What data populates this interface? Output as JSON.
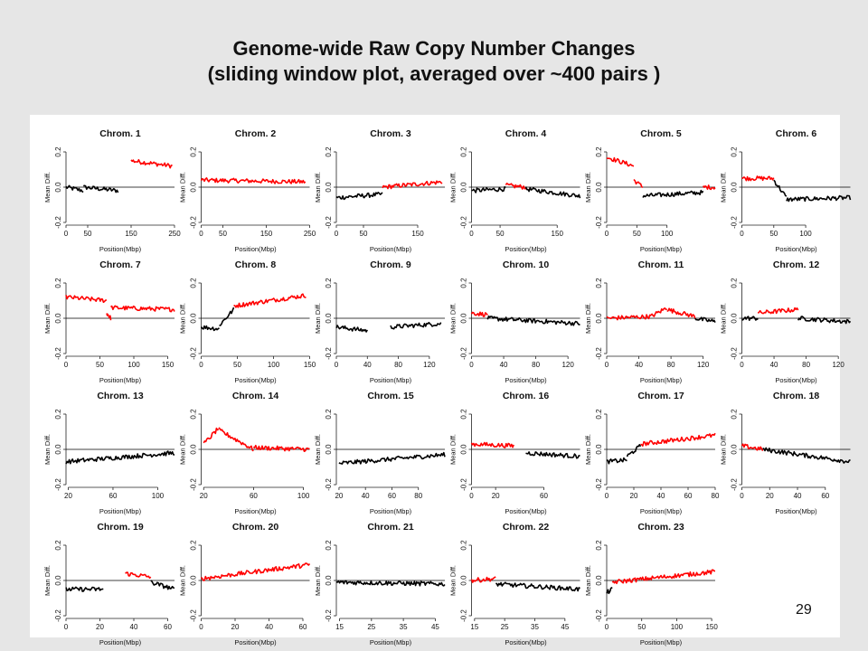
{
  "slide": {
    "title_line1": "Genome-wide Raw Copy Number Changes",
    "title_line2": "(sliding window plot, averaged over ~400 pairs )",
    "page_number": "29"
  },
  "colors": {
    "gain": "#ff0000",
    "loss": "#000000",
    "background": "#e6e6e6",
    "panel": "#ffffff"
  },
  "chart_data": [
    {
      "type": "line",
      "title": "Chrom. 1",
      "xlabel": "Position(Mbp)",
      "ylabel": "Mean Diff.",
      "xlim": [
        0,
        250
      ],
      "ylim": [
        -0.2,
        0.2
      ],
      "xticks": [
        0,
        50,
        150,
        250
      ],
      "yticks": [
        -0.2,
        0.0,
        0.2
      ],
      "segments": [
        {
          "x": [
            0,
            40
          ],
          "y": [
            0.0,
            -0.02
          ],
          "color": "black"
        },
        {
          "x": [
            40,
            120
          ],
          "y": [
            0.0,
            -0.02
          ],
          "color": "black"
        },
        {
          "x": [
            150,
            245
          ],
          "y": [
            0.15,
            0.12
          ],
          "color": "red"
        }
      ]
    },
    {
      "type": "line",
      "title": "Chrom. 2",
      "xlabel": "Position(Mbp)",
      "ylabel": "Mean Diff.",
      "xlim": [
        0,
        250
      ],
      "ylim": [
        -0.2,
        0.2
      ],
      "xticks": [
        0,
        50,
        150,
        250
      ],
      "yticks": [
        -0.2,
        0.0,
        0.2
      ],
      "segments": [
        {
          "x": [
            0,
            240
          ],
          "y": [
            0.04,
            0.03
          ],
          "color": "red"
        }
      ]
    },
    {
      "type": "line",
      "title": "Chrom. 3",
      "xlabel": "Position(Mbp)",
      "ylabel": "Mean Diff.",
      "xlim": [
        0,
        200
      ],
      "ylim": [
        -0.2,
        0.2
      ],
      "xticks": [
        0,
        50,
        150
      ],
      "yticks": [
        -0.2,
        0.0,
        0.2
      ],
      "segments": [
        {
          "x": [
            0,
            85
          ],
          "y": [
            -0.06,
            -0.04
          ],
          "color": "black"
        },
        {
          "x": [
            85,
            195
          ],
          "y": [
            0.0,
            0.03
          ],
          "color": "red"
        }
      ]
    },
    {
      "type": "line",
      "title": "Chrom. 4",
      "xlabel": "Position(Mbp)",
      "ylabel": "Mean Diff.",
      "xlim": [
        0,
        190
      ],
      "ylim": [
        -0.2,
        0.2
      ],
      "xticks": [
        0,
        50,
        150
      ],
      "yticks": [
        -0.2,
        0.0,
        0.2
      ],
      "segments": [
        {
          "x": [
            0,
            60
          ],
          "y": [
            -0.02,
            -0.01
          ],
          "color": "black"
        },
        {
          "x": [
            60,
            95
          ],
          "y": [
            0.01,
            0.0
          ],
          "color": "red"
        },
        {
          "x": [
            95,
            190
          ],
          "y": [
            -0.01,
            -0.05
          ],
          "color": "black"
        }
      ]
    },
    {
      "type": "line",
      "title": "Chrom. 5",
      "xlabel": "Position(Mbp)",
      "ylabel": "Mean Diff.",
      "xlim": [
        0,
        180
      ],
      "ylim": [
        -0.2,
        0.2
      ],
      "xticks": [
        0,
        50,
        100
      ],
      "yticks": [
        -0.2,
        0.0,
        0.2
      ],
      "segments": [
        {
          "x": [
            0,
            45
          ],
          "y": [
            0.17,
            0.12
          ],
          "color": "red"
        },
        {
          "x": [
            45,
            60
          ],
          "y": [
            0.04,
            0.0
          ],
          "color": "red"
        },
        {
          "x": [
            60,
            160
          ],
          "y": [
            -0.05,
            -0.03
          ],
          "color": "black"
        },
        {
          "x": [
            160,
            180
          ],
          "y": [
            0.0,
            0.0
          ],
          "color": "red"
        }
      ]
    },
    {
      "type": "line",
      "title": "Chrom. 6",
      "xlabel": "Position(Mbp)",
      "ylabel": "Mean Diff.",
      "xlim": [
        0,
        170
      ],
      "ylim": [
        -0.2,
        0.2
      ],
      "xticks": [
        0,
        50,
        100
      ],
      "yticks": [
        -0.2,
        0.0,
        0.2
      ],
      "segments": [
        {
          "x": [
            0,
            50
          ],
          "y": [
            0.05,
            0.05
          ],
          "color": "red"
        },
        {
          "x": [
            50,
            70
          ],
          "y": [
            0.04,
            -0.06
          ],
          "color": "black"
        },
        {
          "x": [
            70,
            170
          ],
          "y": [
            -0.07,
            -0.06
          ],
          "color": "black"
        }
      ]
    },
    {
      "type": "line",
      "title": "Chrom. 7",
      "xlabel": "Position(Mbp)",
      "ylabel": "Mean Diff.",
      "xlim": [
        0,
        160
      ],
      "ylim": [
        -0.2,
        0.2
      ],
      "xticks": [
        0,
        50,
        100,
        150
      ],
      "yticks": [
        -0.2,
        0.0,
        0.2
      ],
      "segments": [
        {
          "x": [
            0,
            60
          ],
          "y": [
            0.12,
            0.1
          ],
          "color": "red"
        },
        {
          "x": [
            60,
            66
          ],
          "y": [
            0.03,
            0.0
          ],
          "color": "red"
        },
        {
          "x": [
            66,
            160
          ],
          "y": [
            0.06,
            0.05
          ],
          "color": "red"
        }
      ]
    },
    {
      "type": "line",
      "title": "Chrom. 8",
      "xlabel": "Position(Mbp)",
      "ylabel": "Mean Diff.",
      "xlim": [
        0,
        150
      ],
      "ylim": [
        -0.2,
        0.2
      ],
      "xticks": [
        0,
        50,
        100,
        150
      ],
      "yticks": [
        -0.2,
        0.0,
        0.2
      ],
      "segments": [
        {
          "x": [
            0,
            25
          ],
          "y": [
            -0.05,
            -0.06
          ],
          "color": "black"
        },
        {
          "x": [
            25,
            45
          ],
          "y": [
            -0.04,
            0.05
          ],
          "color": "black"
        },
        {
          "x": [
            45,
            145
          ],
          "y": [
            0.07,
            0.13
          ],
          "color": "red"
        }
      ]
    },
    {
      "type": "line",
      "title": "Chrom. 9",
      "xlabel": "Position(Mbp)",
      "ylabel": "Mean Diff.",
      "xlim": [
        0,
        140
      ],
      "ylim": [
        -0.2,
        0.2
      ],
      "xticks": [
        0,
        40,
        80,
        120
      ],
      "yticks": [
        -0.2,
        0.0,
        0.2
      ],
      "segments": [
        {
          "x": [
            0,
            40
          ],
          "y": [
            -0.05,
            -0.07
          ],
          "color": "black"
        },
        {
          "x": [
            70,
            135
          ],
          "y": [
            -0.05,
            -0.03
          ],
          "color": "black"
        }
      ]
    },
    {
      "type": "line",
      "title": "Chrom. 10",
      "xlabel": "Position(Mbp)",
      "ylabel": "Mean Diff.",
      "xlim": [
        0,
        135
      ],
      "ylim": [
        -0.2,
        0.2
      ],
      "xticks": [
        0,
        40,
        80,
        120
      ],
      "yticks": [
        -0.2,
        0.0,
        0.2
      ],
      "segments": [
        {
          "x": [
            0,
            20
          ],
          "y": [
            0.03,
            0.02
          ],
          "color": "red"
        },
        {
          "x": [
            20,
            135
          ],
          "y": [
            0.0,
            -0.03
          ],
          "color": "black"
        }
      ]
    },
    {
      "type": "line",
      "title": "Chrom. 11",
      "xlabel": "Position(Mbp)",
      "ylabel": "Mean Diff.",
      "xlim": [
        0,
        135
      ],
      "ylim": [
        -0.2,
        0.2
      ],
      "xticks": [
        0,
        40,
        80,
        120
      ],
      "yticks": [
        -0.2,
        0.0,
        0.2
      ],
      "segments": [
        {
          "x": [
            0,
            55
          ],
          "y": [
            0.0,
            0.01
          ],
          "color": "red"
        },
        {
          "x": [
            55,
            75
          ],
          "y": [
            0.01,
            0.06
          ],
          "color": "red"
        },
        {
          "x": [
            75,
            110
          ],
          "y": [
            0.05,
            0.01
          ],
          "color": "red"
        },
        {
          "x": [
            110,
            135
          ],
          "y": [
            0.0,
            -0.02
          ],
          "color": "black"
        }
      ]
    },
    {
      "type": "line",
      "title": "Chrom. 12",
      "xlabel": "Position(Mbp)",
      "ylabel": "Mean Diff.",
      "xlim": [
        0,
        135
      ],
      "ylim": [
        -0.2,
        0.2
      ],
      "xticks": [
        0,
        40,
        80,
        120
      ],
      "yticks": [
        -0.2,
        0.0,
        0.2
      ],
      "segments": [
        {
          "x": [
            0,
            20
          ],
          "y": [
            0.0,
            0.0
          ],
          "color": "black"
        },
        {
          "x": [
            20,
            70
          ],
          "y": [
            0.03,
            0.05
          ],
          "color": "red"
        },
        {
          "x": [
            70,
            135
          ],
          "y": [
            0.0,
            -0.02
          ],
          "color": "black"
        }
      ]
    },
    {
      "type": "line",
      "title": "Chrom. 13",
      "xlabel": "Position(Mbp)",
      "ylabel": "Mean Diff.",
      "xlim": [
        18,
        115
      ],
      "ylim": [
        -0.2,
        0.2
      ],
      "xticks": [
        20,
        60,
        100
      ],
      "yticks": [
        -0.2,
        0.0,
        0.2
      ],
      "segments": [
        {
          "x": [
            18,
            115
          ],
          "y": [
            -0.07,
            -0.02
          ],
          "color": "black"
        }
      ]
    },
    {
      "type": "line",
      "title": "Chrom. 14",
      "xlabel": "Position(Mbp)",
      "ylabel": "Mean Diff.",
      "xlim": [
        18,
        105
      ],
      "ylim": [
        -0.2,
        0.2
      ],
      "xticks": [
        20,
        60,
        100
      ],
      "yticks": [
        -0.2,
        0.0,
        0.2
      ],
      "segments": [
        {
          "x": [
            20,
            32
          ],
          "y": [
            0.03,
            0.12
          ],
          "color": "red"
        },
        {
          "x": [
            32,
            60
          ],
          "y": [
            0.11,
            0.0
          ],
          "color": "red"
        },
        {
          "x": [
            60,
            105
          ],
          "y": [
            0.01,
            0.0
          ],
          "color": "red"
        }
      ]
    },
    {
      "type": "line",
      "title": "Chrom. 15",
      "xlabel": "Position(Mbp)",
      "ylabel": "Mean Diff.",
      "xlim": [
        18,
        100
      ],
      "ylim": [
        -0.2,
        0.2
      ],
      "xticks": [
        20,
        40,
        60,
        80
      ],
      "yticks": [
        -0.2,
        0.0,
        0.2
      ],
      "segments": [
        {
          "x": [
            20,
            100
          ],
          "y": [
            -0.08,
            -0.03
          ],
          "color": "black"
        }
      ]
    },
    {
      "type": "line",
      "title": "Chrom. 16",
      "xlabel": "Position(Mbp)",
      "ylabel": "Mean Diff.",
      "xlim": [
        0,
        90
      ],
      "ylim": [
        -0.2,
        0.2
      ],
      "xticks": [
        0,
        20,
        60
      ],
      "yticks": [
        -0.2,
        0.0,
        0.2
      ],
      "segments": [
        {
          "x": [
            0,
            35
          ],
          "y": [
            0.03,
            0.02
          ],
          "color": "red"
        },
        {
          "x": [
            45,
            90
          ],
          "y": [
            -0.02,
            -0.04
          ],
          "color": "black"
        }
      ]
    },
    {
      "type": "line",
      "title": "Chrom. 17",
      "xlabel": "Position(Mbp)",
      "ylabel": "Mean Diff.",
      "xlim": [
        0,
        80
      ],
      "ylim": [
        -0.2,
        0.2
      ],
      "xticks": [
        0,
        20,
        40,
        60,
        80
      ],
      "yticks": [
        -0.2,
        0.0,
        0.2
      ],
      "segments": [
        {
          "x": [
            0,
            15
          ],
          "y": [
            -0.07,
            -0.06
          ],
          "color": "black"
        },
        {
          "x": [
            15,
            25
          ],
          "y": [
            -0.04,
            0.02
          ],
          "color": "black"
        },
        {
          "x": [
            25,
            80
          ],
          "y": [
            0.03,
            0.08
          ],
          "color": "red"
        }
      ]
    },
    {
      "type": "line",
      "title": "Chrom. 18",
      "xlabel": "Position(Mbp)",
      "ylabel": "Mean Diff.",
      "xlim": [
        0,
        78
      ],
      "ylim": [
        -0.2,
        0.2
      ],
      "xticks": [
        0,
        20,
        40,
        60
      ],
      "yticks": [
        -0.2,
        0.0,
        0.2
      ],
      "segments": [
        {
          "x": [
            0,
            15
          ],
          "y": [
            0.02,
            0.0
          ],
          "color": "red"
        },
        {
          "x": [
            15,
            78
          ],
          "y": [
            0.0,
            -0.07
          ],
          "color": "black"
        }
      ]
    },
    {
      "type": "line",
      "title": "Chrom. 19",
      "xlabel": "Position(Mbp)",
      "ylabel": "Mean Diff.",
      "xlim": [
        0,
        64
      ],
      "ylim": [
        -0.2,
        0.2
      ],
      "xticks": [
        0,
        20,
        40,
        60
      ],
      "yticks": [
        -0.2,
        0.0,
        0.2
      ],
      "segments": [
        {
          "x": [
            0,
            22
          ],
          "y": [
            -0.05,
            -0.05
          ],
          "color": "black"
        },
        {
          "x": [
            35,
            50
          ],
          "y": [
            0.04,
            0.02
          ],
          "color": "red"
        },
        {
          "x": [
            50,
            64
          ],
          "y": [
            -0.01,
            -0.05
          ],
          "color": "black"
        }
      ]
    },
    {
      "type": "line",
      "title": "Chrom. 20",
      "xlabel": "Position(Mbp)",
      "ylabel": "Mean Diff.",
      "xlim": [
        0,
        64
      ],
      "ylim": [
        -0.2,
        0.2
      ],
      "xticks": [
        0,
        20,
        40,
        60
      ],
      "yticks": [
        -0.2,
        0.0,
        0.2
      ],
      "segments": [
        {
          "x": [
            0,
            64
          ],
          "y": [
            0.01,
            0.09
          ],
          "color": "red"
        }
      ]
    },
    {
      "type": "line",
      "title": "Chrom. 21",
      "xlabel": "Position(Mbp)",
      "ylabel": "Mean Diff.",
      "xlim": [
        14,
        48
      ],
      "ylim": [
        -0.2,
        0.2
      ],
      "xticks": [
        15,
        25,
        35,
        45
      ],
      "yticks": [
        -0.2,
        0.0,
        0.2
      ],
      "segments": [
        {
          "x": [
            14,
            48
          ],
          "y": [
            -0.01,
            -0.02
          ],
          "color": "black"
        }
      ]
    },
    {
      "type": "line",
      "title": "Chrom. 22",
      "xlabel": "Position(Mbp)",
      "ylabel": "Mean Diff.",
      "xlim": [
        14,
        50
      ],
      "ylim": [
        -0.2,
        0.2
      ],
      "xticks": [
        15,
        25,
        35,
        45
      ],
      "yticks": [
        -0.2,
        0.0,
        0.2
      ],
      "segments": [
        {
          "x": [
            14,
            22
          ],
          "y": [
            0.0,
            0.01
          ],
          "color": "red"
        },
        {
          "x": [
            22,
            50
          ],
          "y": [
            -0.02,
            -0.05
          ],
          "color": "black"
        }
      ]
    },
    {
      "type": "line",
      "title": "Chrom. 23",
      "xlabel": "Position(Mbp)",
      "ylabel": "Mean Diff.",
      "xlim": [
        0,
        155
      ],
      "ylim": [
        -0.2,
        0.2
      ],
      "xticks": [
        0,
        50,
        100,
        150
      ],
      "yticks": [
        -0.2,
        0.0,
        0.2
      ],
      "segments": [
        {
          "x": [
            0,
            8
          ],
          "y": [
            -0.07,
            -0.05
          ],
          "color": "black"
        },
        {
          "x": [
            8,
            155
          ],
          "y": [
            -0.01,
            0.05
          ],
          "color": "red"
        }
      ]
    }
  ]
}
